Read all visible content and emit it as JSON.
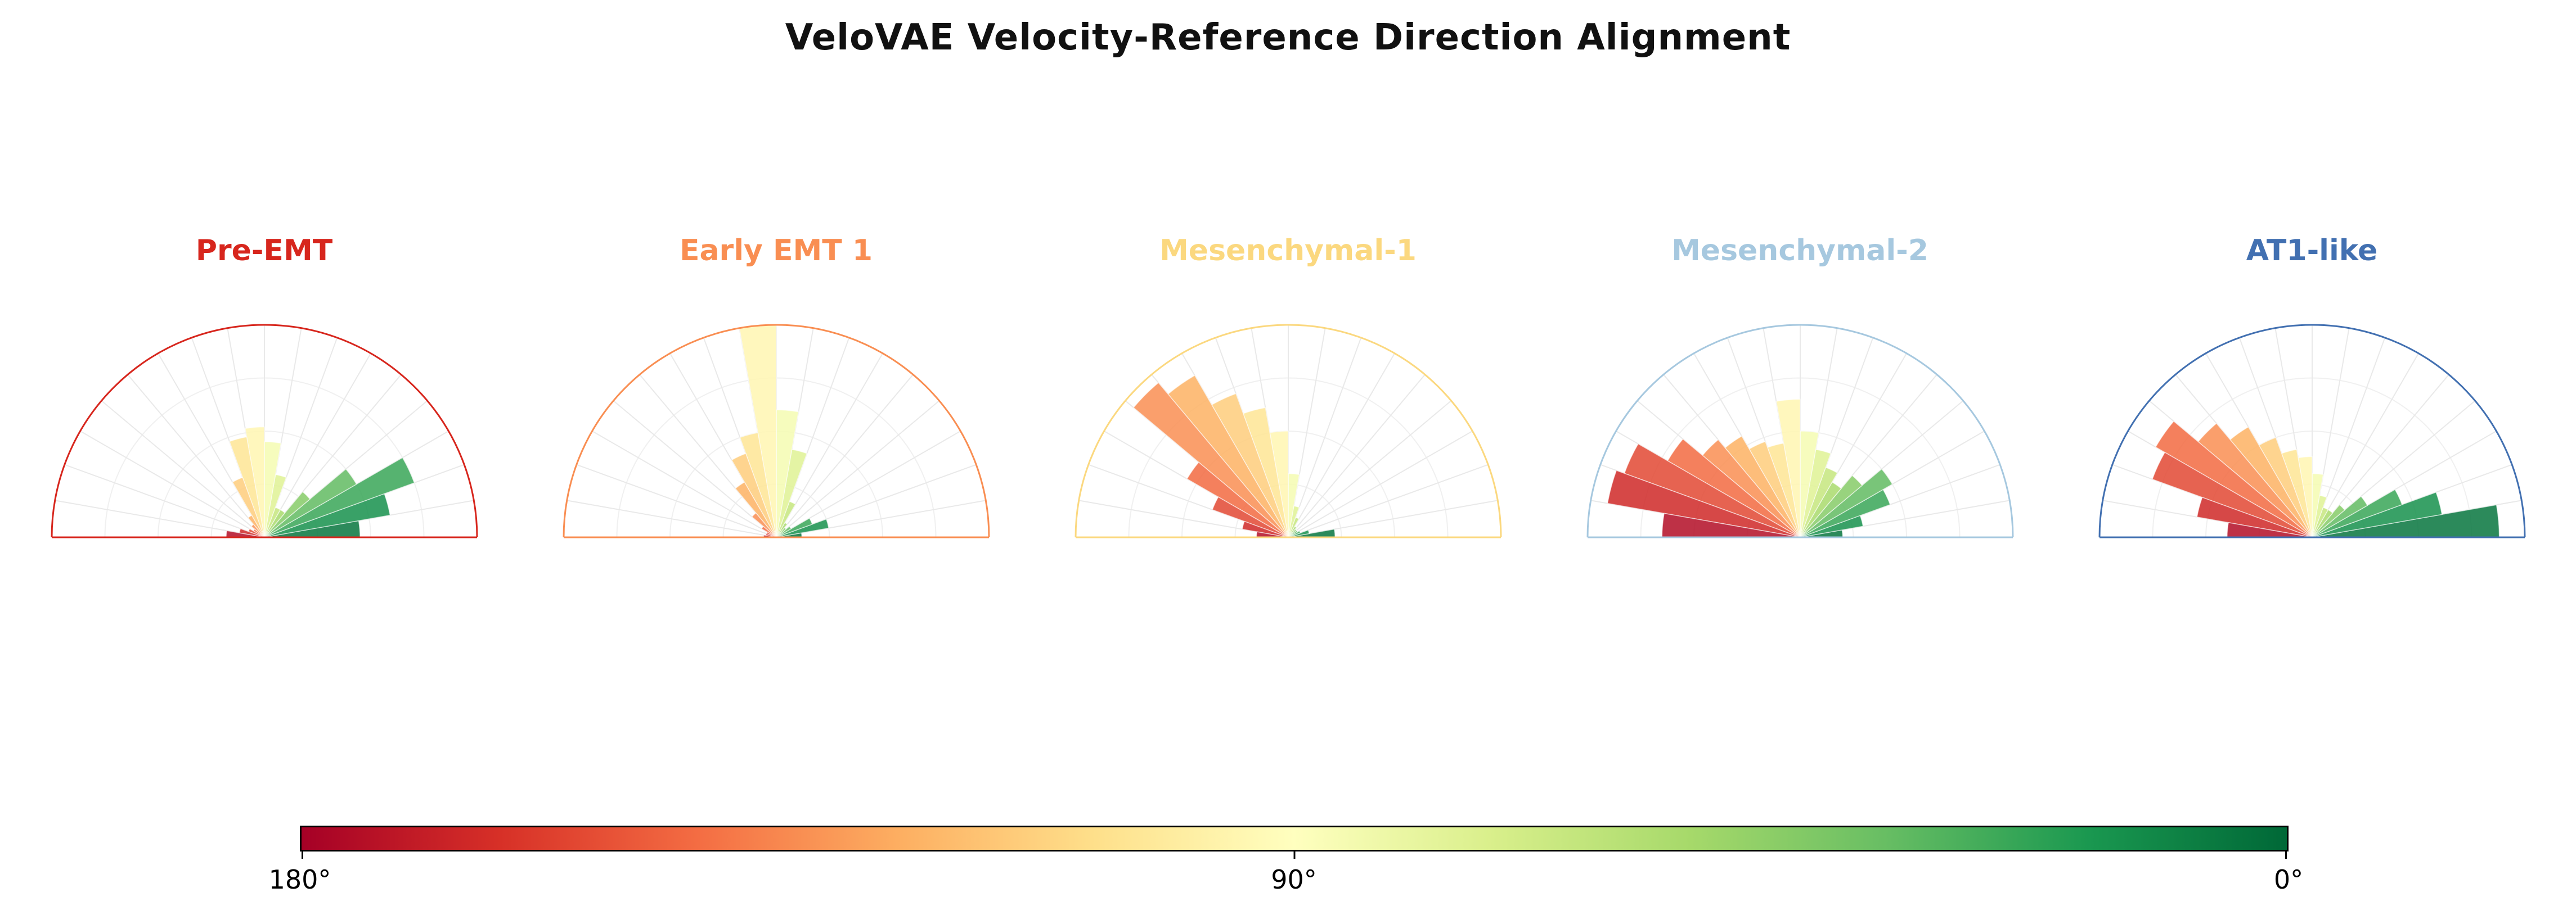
{
  "page": {
    "title": "VeloVAE Velocity-Reference Direction Alignment",
    "background": "#ffffff"
  },
  "style": {
    "grid_spoke_color": "#e9e9e9",
    "grid_arc_color": "#f0f0f0",
    "bar_alpha": 0.85
  },
  "colormap": {
    "name": "RdYlGn",
    "anchors": [
      "#a50026",
      "#d73027",
      "#f46d43",
      "#fdae61",
      "#fee08b",
      "#ffffbf",
      "#d9ef8b",
      "#a6d96a",
      "#66bd63",
      "#1a9850",
      "#006837"
    ]
  },
  "colorbar": {
    "tick_labels": [
      "180°",
      "90°",
      "0°"
    ],
    "left_value_deg": 180,
    "center_value_deg": 90,
    "right_value_deg": 0,
    "orientation": "horizontal"
  },
  "chart_data": [
    {
      "type": "bar",
      "subtype": "polar_half_rose",
      "title": "Pre-EMT",
      "accent": "#d7261d",
      "theta_range_deg": [
        0,
        180
      ],
      "bin_width_deg": 10,
      "bin_centers_deg": [
        5,
        15,
        25,
        35,
        45,
        55,
        65,
        75,
        85,
        95,
        105,
        115,
        125,
        135,
        145,
        155,
        165,
        175
      ],
      "values": [
        0.45,
        0.6,
        0.75,
        0.5,
        0.28,
        0.15,
        0.15,
        0.3,
        0.45,
        0.52,
        0.48,
        0.3,
        0.12,
        0.08,
        0.06,
        0.08,
        0.12,
        0.18
      ],
      "r_max": 1.0,
      "color_by": "angle_RdYlGn_0green_180red",
      "grid": true,
      "legend": "none"
    },
    {
      "type": "bar",
      "subtype": "polar_half_rose",
      "title": "Early EMT 1",
      "accent": "#f98e52",
      "theta_range_deg": [
        0,
        180
      ],
      "bin_width_deg": 10,
      "bin_centers_deg": [
        5,
        15,
        25,
        35,
        45,
        55,
        65,
        75,
        85,
        95,
        105,
        115,
        125,
        135,
        145,
        155,
        165,
        175
      ],
      "values": [
        0.12,
        0.25,
        0.18,
        0.08,
        0.06,
        0.08,
        0.18,
        0.42,
        0.6,
        1.0,
        0.5,
        0.42,
        0.3,
        0.15,
        0.08,
        0.05,
        0.05,
        0.06
      ],
      "r_max": 1.0,
      "color_by": "angle_RdYlGn_0green_180red",
      "grid": true,
      "legend": "none"
    },
    {
      "type": "bar",
      "subtype": "polar_half_rose",
      "title": "Mesenchymal-1",
      "accent": "#fbd87f",
      "theta_range_deg": [
        0,
        180
      ],
      "bin_width_deg": 10,
      "bin_centers_deg": [
        5,
        15,
        25,
        35,
        45,
        55,
        65,
        75,
        85,
        95,
        105,
        115,
        125,
        135,
        145,
        155,
        165,
        175
      ],
      "values": [
        0.22,
        0.1,
        0.06,
        0.05,
        0.05,
        0.06,
        0.1,
        0.15,
        0.3,
        0.5,
        0.62,
        0.72,
        0.88,
        0.95,
        0.55,
        0.38,
        0.22,
        0.15
      ],
      "r_max": 1.0,
      "color_by": "angle_RdYlGn_0green_180red",
      "grid": true,
      "legend": "none"
    },
    {
      "type": "bar",
      "subtype": "polar_half_rose",
      "title": "Mesenchymal-2",
      "accent": "#a6c8df",
      "theta_range_deg": [
        0,
        180
      ],
      "bin_width_deg": 10,
      "bin_centers_deg": [
        5,
        15,
        25,
        35,
        45,
        55,
        65,
        75,
        85,
        95,
        105,
        115,
        125,
        135,
        145,
        155,
        165,
        175
      ],
      "values": [
        0.2,
        0.3,
        0.45,
        0.5,
        0.38,
        0.3,
        0.35,
        0.42,
        0.5,
        0.65,
        0.45,
        0.48,
        0.55,
        0.6,
        0.72,
        0.88,
        0.92,
        0.65
      ],
      "r_max": 1.0,
      "color_by": "angle_RdYlGn_0green_180red",
      "grid": true,
      "legend": "none"
    },
    {
      "type": "bar",
      "subtype": "polar_half_rose",
      "title": "AT1-like",
      "accent": "#4270b1",
      "theta_range_deg": [
        0,
        180
      ],
      "bin_width_deg": 10,
      "bin_centers_deg": [
        5,
        15,
        25,
        35,
        45,
        55,
        65,
        75,
        85,
        95,
        105,
        115,
        125,
        135,
        145,
        155,
        165,
        175
      ],
      "values": [
        0.88,
        0.62,
        0.45,
        0.3,
        0.2,
        0.15,
        0.15,
        0.2,
        0.3,
        0.38,
        0.42,
        0.5,
        0.6,
        0.7,
        0.85,
        0.8,
        0.55,
        0.4
      ],
      "r_max": 1.0,
      "color_by": "angle_RdYlGn_0green_180red",
      "grid": true,
      "legend": "none"
    }
  ]
}
